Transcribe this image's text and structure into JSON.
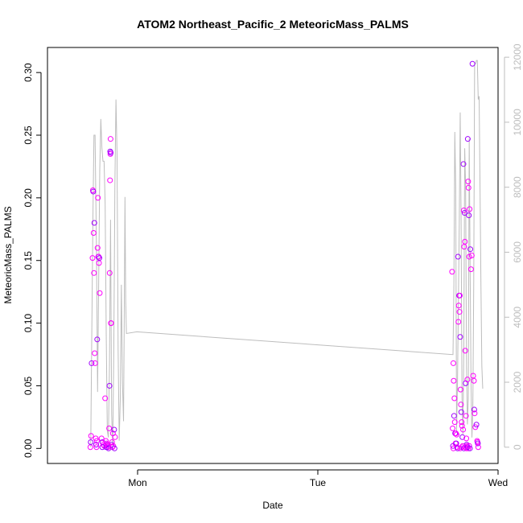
{
  "chart_data": {
    "type": "scatter",
    "title": "ATOM2 Northeast_Pacific_2 MeteoricMass_PALMS",
    "xlabel": "Date",
    "ylabel": "MeteoricMass_PALMS",
    "xlim": [
      -0.5,
      2.0
    ],
    "ylim": [
      -0.012,
      0.32
    ],
    "y2lim": [
      -500,
      12300
    ],
    "x_ticks": [
      {
        "value": 0,
        "label": "Mon"
      },
      {
        "value": 1,
        "label": "Tue"
      },
      {
        "value": 2,
        "label": "Wed"
      }
    ],
    "y_ticks": [
      "0.00",
      "0.05",
      "0.10",
      "0.15",
      "0.20",
      "0.25",
      "0.30"
    ],
    "y2_ticks": [
      "0",
      "2000",
      "4000",
      "6000",
      "8000",
      "10000",
      "12000"
    ],
    "grid": false,
    "colors": {
      "points_a": "#ff00ff",
      "points_b": "#a000ff",
      "secondary_line": "#bdbdbd",
      "axes": "#000000",
      "secondary_axis": "#bdbdbd"
    },
    "series": [
      {
        "axis": "right",
        "style": "line",
        "points": [
          [
            -0.26,
            0
          ],
          [
            -0.255,
            3000
          ],
          [
            -0.248,
            7000
          ],
          [
            -0.242,
            9600
          ],
          [
            -0.236,
            9600
          ],
          [
            -0.228,
            6000
          ],
          [
            -0.222,
            1700
          ],
          [
            -0.216,
            5000
          ],
          [
            -0.21,
            8500
          ],
          [
            -0.204,
            10100
          ],
          [
            -0.198,
            9200
          ],
          [
            -0.192,
            8800
          ],
          [
            -0.186,
            8800
          ],
          [
            -0.18,
            7500
          ],
          [
            -0.174,
            3500
          ],
          [
            -0.168,
            500
          ],
          [
            -0.162,
            300
          ],
          [
            -0.156,
            2500
          ],
          [
            -0.15,
            7000
          ],
          [
            -0.144,
            1000
          ],
          [
            -0.138,
            0
          ],
          [
            -0.132,
            3000
          ],
          [
            -0.126,
            8000
          ],
          [
            -0.12,
            10700
          ],
          [
            -0.114,
            9000
          ],
          [
            -0.108,
            3000
          ],
          [
            -0.102,
            200
          ],
          [
            -0.096,
            1500
          ],
          [
            -0.09,
            5000
          ],
          [
            -0.084,
            2000
          ],
          [
            -0.078,
            800
          ],
          [
            -0.074,
            4000
          ],
          [
            -0.07,
            7700
          ],
          [
            -0.066,
            4500
          ],
          [
            -0.062,
            3500
          ],
          [
            -0.004,
            3550
          ],
          [
            1.75,
            2850
          ],
          [
            1.755,
            5000
          ],
          [
            1.76,
            9700
          ],
          [
            1.765,
            8000
          ],
          [
            1.77,
            500
          ],
          [
            1.775,
            2000
          ],
          [
            1.785,
            7000
          ],
          [
            1.79,
            10300
          ],
          [
            1.795,
            7000
          ],
          [
            1.8,
            1500
          ],
          [
            1.805,
            400
          ],
          [
            1.81,
            3000
          ],
          [
            1.815,
            9200
          ],
          [
            1.82,
            8000
          ],
          [
            1.825,
            2500
          ],
          [
            1.83,
            700
          ],
          [
            1.835,
            1500
          ],
          [
            1.84,
            9500
          ],
          [
            1.845,
            5500
          ],
          [
            1.85,
            2000
          ],
          [
            1.855,
            300
          ],
          [
            1.86,
            1200
          ],
          [
            1.865,
            5000
          ],
          [
            1.87,
            11800
          ],
          [
            1.875,
            11800
          ],
          [
            1.88,
            11900
          ],
          [
            1.885,
            11900
          ],
          [
            1.89,
            10700
          ],
          [
            1.895,
            10800
          ],
          [
            1.9,
            8000
          ],
          [
            1.905,
            5000
          ],
          [
            1.91,
            2500
          ],
          [
            1.915,
            1800
          ]
        ]
      },
      {
        "axis": "left",
        "style": "points",
        "points": [
          [
            -0.255,
            0.068
          ],
          [
            -0.25,
            0.152
          ],
          [
            -0.248,
            0.206
          ],
          [
            -0.246,
            0.205
          ],
          [
            -0.244,
            0.172
          ],
          [
            -0.242,
            0.14
          ],
          [
            -0.24,
            0.18
          ],
          [
            -0.238,
            0.076
          ],
          [
            -0.236,
            0.068
          ],
          [
            -0.224,
            0.087
          ],
          [
            -0.222,
            0.16
          ],
          [
            -0.22,
            0.2
          ],
          [
            -0.218,
            0.153
          ],
          [
            -0.216,
            0.153
          ],
          [
            -0.214,
            0.148
          ],
          [
            -0.212,
            0.152
          ],
          [
            -0.21,
            0.124
          ],
          [
            -0.2,
            0.008
          ],
          [
            -0.195,
            0.005
          ],
          [
            -0.185,
            0.002
          ],
          [
            -0.18,
            0.04
          ],
          [
            -0.17,
            0.003
          ],
          [
            -0.165,
            0.001
          ],
          [
            -0.158,
            0.016
          ],
          [
            -0.156,
            0.05
          ],
          [
            -0.155,
            0.14
          ],
          [
            -0.153,
            0.214
          ],
          [
            -0.152,
            0.237
          ],
          [
            -0.151,
            0.235
          ],
          [
            -0.15,
            0.247
          ],
          [
            -0.149,
            0.236
          ],
          [
            -0.148,
            0.1
          ],
          [
            -0.147,
            0.1
          ],
          [
            -0.144,
            0.003
          ],
          [
            -0.142,
            0.005
          ],
          [
            -0.137,
            0.012
          ],
          [
            -0.13,
            0.015
          ],
          [
            -0.125,
            0.009
          ],
          [
            -0.262,
            0.001
          ],
          [
            -0.26,
            0.005
          ],
          [
            -0.258,
            0.01
          ],
          [
            -0.232,
            0.008
          ],
          [
            -0.23,
            0.003
          ],
          [
            -0.228,
            0.001
          ],
          [
            -0.226,
            0.006
          ],
          [
            -0.196,
            0.001
          ],
          [
            -0.19,
            0.003
          ],
          [
            -0.176,
            0.006
          ],
          [
            -0.174,
            0.001
          ],
          [
            -0.172,
            0.004
          ],
          [
            -0.163,
            0.002
          ],
          [
            -0.161,
            0.0
          ],
          [
            -0.14,
            0.001
          ],
          [
            -0.135,
            0.002
          ],
          [
            -0.128,
            0.0
          ],
          [
            1.745,
            0.141
          ],
          [
            1.748,
            0.016
          ],
          [
            1.75,
            0.002
          ],
          [
            1.752,
            0.068
          ],
          [
            1.754,
            0.054
          ],
          [
            1.756,
            0.026
          ],
          [
            1.758,
            0.04
          ],
          [
            1.76,
            0.021
          ],
          [
            1.762,
            0.012
          ],
          [
            1.764,
            0.004
          ],
          [
            1.766,
            0.012
          ],
          [
            1.768,
            0.004
          ],
          [
            1.77,
            0.011
          ],
          [
            1.772,
            0.001
          ],
          [
            1.778,
            0.153
          ],
          [
            1.78,
            0.101
          ],
          [
            1.782,
            0.114
          ],
          [
            1.784,
            0.122
          ],
          [
            1.786,
            0.109
          ],
          [
            1.788,
            0.122
          ],
          [
            1.79,
            0.089
          ],
          [
            1.792,
            0.047
          ],
          [
            1.794,
            0.035
          ],
          [
            1.796,
            0.029
          ],
          [
            1.798,
            0.021
          ],
          [
            1.8,
            0.018
          ],
          [
            1.802,
            0.009
          ],
          [
            1.804,
            0.002
          ],
          [
            1.806,
            0.015
          ],
          [
            1.808,
            0.227
          ],
          [
            1.81,
            0.19
          ],
          [
            1.812,
            0.161
          ],
          [
            1.814,
            0.188
          ],
          [
            1.816,
            0.165
          ],
          [
            1.818,
            0.078
          ],
          [
            1.82,
            0.052
          ],
          [
            1.822,
            0.026
          ],
          [
            1.824,
            0.008
          ],
          [
            1.826,
            0.003
          ],
          [
            1.828,
            0.002
          ],
          [
            1.83,
            0.055
          ],
          [
            1.832,
            0.247
          ],
          [
            1.834,
            0.213
          ],
          [
            1.836,
            0.208
          ],
          [
            1.838,
            0.186
          ],
          [
            1.84,
            0.153
          ],
          [
            1.842,
            0.191
          ],
          [
            1.846,
            0.159
          ],
          [
            1.85,
            0.143
          ],
          [
            1.854,
            0.154
          ],
          [
            1.858,
            0.307
          ],
          [
            1.862,
            0.058
          ],
          [
            1.866,
            0.054
          ],
          [
            1.868,
            0.031
          ],
          [
            1.87,
            0.028
          ],
          [
            1.874,
            0.017
          ],
          [
            1.88,
            0.019
          ],
          [
            1.884,
            0.006
          ],
          [
            1.886,
            0.005
          ],
          [
            1.888,
            0.004
          ],
          [
            1.89,
            0.001
          ],
          [
            1.752,
            0.0
          ],
          [
            1.776,
            0.0
          ],
          [
            1.79,
            0.0
          ],
          [
            1.8,
            0.001
          ],
          [
            1.81,
            0.0
          ],
          [
            1.82,
            0.001
          ],
          [
            1.825,
            0.0
          ],
          [
            1.83,
            0.001
          ],
          [
            1.835,
            0.0
          ],
          [
            1.84,
            0.002
          ],
          [
            1.844,
            0.0
          ]
        ]
      }
    ]
  }
}
